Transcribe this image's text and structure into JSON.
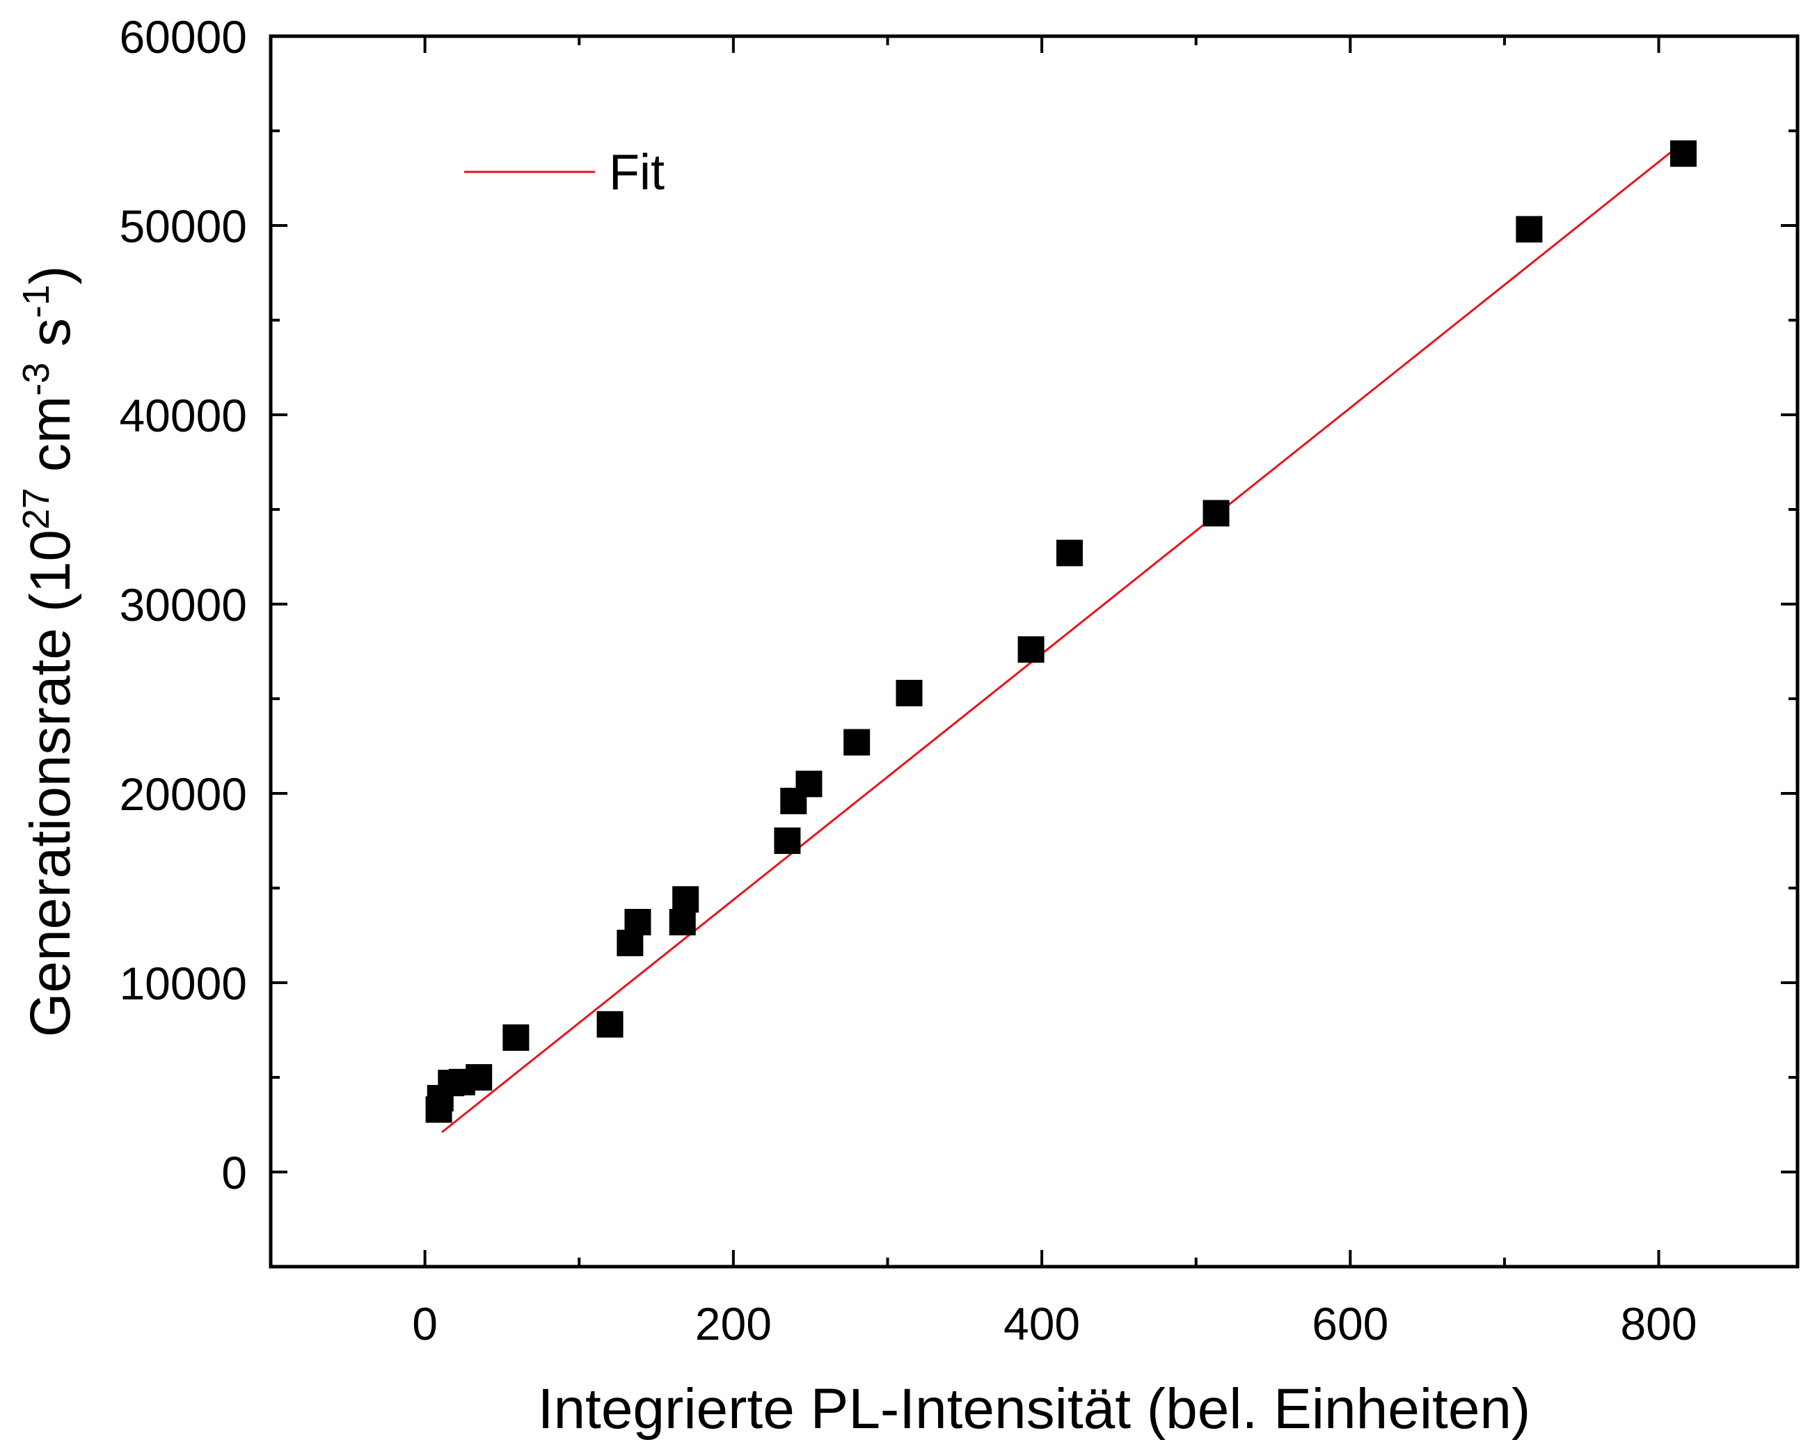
{
  "chart_data": {
    "type": "scatter",
    "title": "",
    "xlabel": "Integrierte PL-Intensität (bel. Einheiten)",
    "ylabel": {
      "prefix": "Generationsrate (10",
      "exp1": "27",
      "mid1": " cm",
      "exp2": "-3",
      "mid2": " s",
      "exp3": "-1",
      "suffix": ")"
    },
    "xlim": [
      -100,
      890
    ],
    "ylim": [
      -5000,
      60000
    ],
    "x_ticks": [
      0,
      200,
      400,
      600,
      800
    ],
    "x_tick_labels": [
      "0",
      "200",
      "400",
      "600",
      "800"
    ],
    "y_ticks": [
      0,
      10000,
      20000,
      30000,
      40000,
      50000,
      60000
    ],
    "y_tick_labels": [
      "0",
      "10000",
      "20000",
      "30000",
      "40000",
      "50000",
      "60000"
    ],
    "grid": false,
    "legend": {
      "position": "top-left",
      "entries": [
        "Fit"
      ]
    },
    "series": [
      {
        "kind": "points",
        "marker": "square",
        "color": "#000000",
        "points": [
          [
            9,
            3300
          ],
          [
            10,
            3900
          ],
          [
            17,
            4700
          ],
          [
            24,
            4750
          ],
          [
            35,
            5000
          ],
          [
            59,
            7100
          ],
          [
            120,
            7800
          ],
          [
            133,
            12100
          ],
          [
            138,
            13200
          ],
          [
            167,
            13200
          ],
          [
            169,
            14400
          ],
          [
            235,
            17500
          ],
          [
            239,
            19600
          ],
          [
            249,
            20500
          ],
          [
            280,
            22700
          ],
          [
            314,
            25300
          ],
          [
            393,
            27600
          ],
          [
            418,
            32700
          ],
          [
            513,
            34800
          ],
          [
            716,
            49800
          ],
          [
            816,
            53800
          ]
        ]
      },
      {
        "name": "Fit",
        "kind": "line",
        "color": "#e8141b",
        "points": [
          [
            11,
            2100
          ],
          [
            816,
            54400
          ]
        ]
      }
    ]
  }
}
